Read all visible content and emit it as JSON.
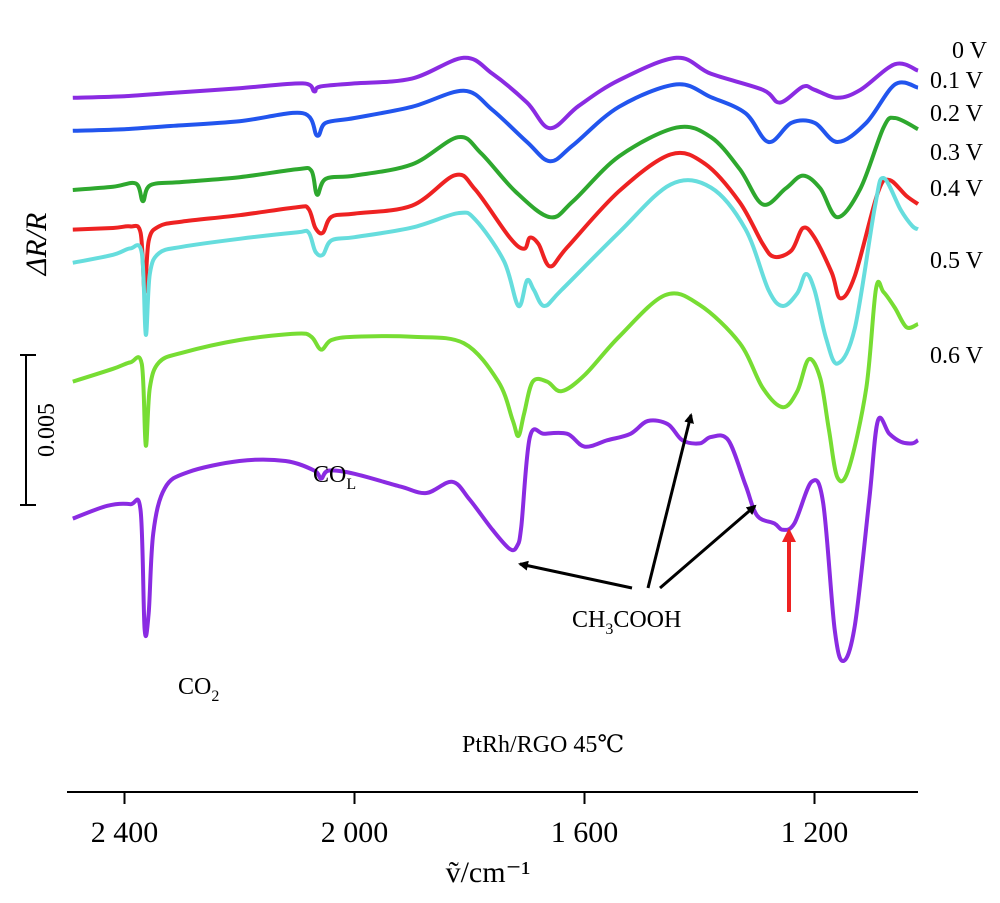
{
  "chart_data": {
    "type": "line",
    "title": "",
    "xlabel": "ṽ/cm⁻¹",
    "ylabel": "ΔR/R",
    "xlim": [
      2500,
      1020
    ],
    "x_reversed": true,
    "ticks": [
      {
        "value": 2400,
        "label": "2 400"
      },
      {
        "value": 2000,
        "label": "2 000"
      },
      {
        "value": 1600,
        "label": "1 600"
      },
      {
        "value": 1200,
        "label": "1 200"
      }
    ],
    "scale_bar": {
      "value": 0.005,
      "label": "0.005"
    },
    "sample_label": "PtRh/RGO 45℃",
    "annotations": {
      "co2": {
        "main": "CO",
        "sub": "2"
      },
      "col": {
        "main": "CO",
        "sub": "L"
      },
      "acetic": {
        "main1": "CH",
        "sub": "3",
        "main2": "COOH"
      }
    },
    "series": [
      {
        "name": "0 V",
        "color": "#8a2be2",
        "points": [
          [
            2490,
            -0.0003
          ],
          [
            2400,
            -0.0002
          ],
          [
            2320,
            0
          ],
          [
            2200,
            0.0003
          ],
          [
            2090,
            0.0006
          ],
          [
            2070,
            0.0001
          ],
          [
            2060,
            0.0004
          ],
          [
            2000,
            0.0006
          ],
          [
            1900,
            0.0009
          ],
          [
            1810,
            0.0022
          ],
          [
            1760,
            0.0012
          ],
          [
            1700,
            -0.0006
          ],
          [
            1660,
            -0.0022
          ],
          [
            1610,
            -0.0008
          ],
          [
            1540,
            0.0008
          ],
          [
            1440,
            0.0022
          ],
          [
            1380,
            0.0012
          ],
          [
            1290,
            0.0002
          ],
          [
            1260,
            -0.0006
          ],
          [
            1220,
            0.0004
          ],
          [
            1200,
            0.0002
          ],
          [
            1160,
            -0.0003
          ],
          [
            1120,
            0.0002
          ],
          [
            1060,
            0.0018
          ],
          [
            1020,
            0.0014
          ]
        ]
      },
      {
        "name": "0.1 V",
        "color": "#2255ee",
        "points": [
          [
            2490,
            -0.0003
          ],
          [
            2400,
            -0.0002
          ],
          [
            2320,
            0
          ],
          [
            2200,
            0.0003
          ],
          [
            2090,
            0.0008
          ],
          [
            2065,
            -0.0006
          ],
          [
            2050,
            0.0002
          ],
          [
            2000,
            0.0005
          ],
          [
            1900,
            0.0012
          ],
          [
            1810,
            0.0022
          ],
          [
            1760,
            0.001
          ],
          [
            1700,
            -0.001
          ],
          [
            1660,
            -0.0022
          ],
          [
            1620,
            -0.0012
          ],
          [
            1540,
            0.0012
          ],
          [
            1440,
            0.0026
          ],
          [
            1380,
            0.0018
          ],
          [
            1320,
            0.0008
          ],
          [
            1280,
            -0.001
          ],
          [
            1240,
            0.0002
          ],
          [
            1200,
            0.0002
          ],
          [
            1160,
            -0.001
          ],
          [
            1110,
            0.0002
          ],
          [
            1060,
            0.0026
          ],
          [
            1020,
            0.0024
          ]
        ]
      },
      {
        "name": "0.2 V",
        "color": "#2ea82e",
        "points": [
          [
            2490,
            -0.0005
          ],
          [
            2420,
            -0.0003
          ],
          [
            2380,
            -0.0001
          ],
          [
            2368,
            -0.0012
          ],
          [
            2355,
            -0.0002
          ],
          [
            2300,
            0
          ],
          [
            2200,
            0.0003
          ],
          [
            2100,
            0.0008
          ],
          [
            2075,
            0.0007
          ],
          [
            2065,
            -0.0008
          ],
          [
            2050,
            0.0002
          ],
          [
            2000,
            0.0004
          ],
          [
            1900,
            0.0011
          ],
          [
            1820,
            0.0028
          ],
          [
            1780,
            0.0018
          ],
          [
            1720,
            -0.0006
          ],
          [
            1660,
            -0.0022
          ],
          [
            1620,
            -0.0012
          ],
          [
            1540,
            0.0016
          ],
          [
            1440,
            0.0034
          ],
          [
            1380,
            0.0028
          ],
          [
            1330,
            0.0008
          ],
          [
            1290,
            -0.0014
          ],
          [
            1250,
            -0.0004
          ],
          [
            1220,
            0.0004
          ],
          [
            1190,
            -0.0004
          ],
          [
            1160,
            -0.0022
          ],
          [
            1120,
            -0.0004
          ],
          [
            1080,
            0.0034
          ],
          [
            1060,
            0.004
          ],
          [
            1020,
            0.0033
          ]
        ]
      },
      {
        "name": "0.3 V",
        "color": "#ee2222",
        "points": [
          [
            2490,
            -0.0001
          ],
          [
            2420,
            0
          ],
          [
            2390,
            0.0001
          ],
          [
            2372,
            -0.0003
          ],
          [
            2365,
            -0.004
          ],
          [
            2358,
            -0.0008
          ],
          [
            2340,
            0.0001
          ],
          [
            2300,
            0.0004
          ],
          [
            2200,
            0.0008
          ],
          [
            2100,
            0.0013
          ],
          [
            2080,
            0.0012
          ],
          [
            2068,
            0
          ],
          [
            2055,
            -0.0003
          ],
          [
            2040,
            0.0007
          ],
          [
            2000,
            0.0009
          ],
          [
            1900,
            0.0014
          ],
          [
            1825,
            0.0033
          ],
          [
            1790,
            0.0024
          ],
          [
            1730,
            -0.0006
          ],
          [
            1705,
            -0.0013
          ],
          [
            1695,
            -0.0006
          ],
          [
            1680,
            -0.001
          ],
          [
            1660,
            -0.0024
          ],
          [
            1630,
            -0.0012
          ],
          [
            1540,
            0.0023
          ],
          [
            1450,
            0.0046
          ],
          [
            1390,
            0.004
          ],
          [
            1330,
            0.0016
          ],
          [
            1290,
            -0.001
          ],
          [
            1270,
            -0.0018
          ],
          [
            1240,
            -0.0014
          ],
          [
            1220,
            0
          ],
          [
            1200,
            -0.0006
          ],
          [
            1170,
            -0.0028
          ],
          [
            1155,
            -0.0044
          ],
          [
            1130,
            -0.003
          ],
          [
            1090,
            0.0022
          ],
          [
            1070,
            0.003
          ],
          [
            1040,
            0.002
          ],
          [
            1020,
            0.0015
          ]
        ]
      },
      {
        "name": "0.4 V",
        "color": "#66dddd",
        "points": [
          [
            2490,
            -0.0003
          ],
          [
            2420,
            0.0002
          ],
          [
            2390,
            0.0006
          ],
          [
            2370,
            0.0003
          ],
          [
            2363,
            -0.0048
          ],
          [
            2356,
            -0.001
          ],
          [
            2340,
            0.0003
          ],
          [
            2300,
            0.0007
          ],
          [
            2200,
            0.0012
          ],
          [
            2100,
            0.0016
          ],
          [
            2080,
            0.0016
          ],
          [
            2068,
            0.0004
          ],
          [
            2055,
            0.0002
          ],
          [
            2040,
            0.0011
          ],
          [
            2000,
            0.0013
          ],
          [
            1900,
            0.0019
          ],
          [
            1820,
            0.0028
          ],
          [
            1790,
            0.0024
          ],
          [
            1740,
            -0.0002
          ],
          [
            1715,
            -0.003
          ],
          [
            1700,
            -0.0014
          ],
          [
            1688,
            -0.002
          ],
          [
            1670,
            -0.003
          ],
          [
            1640,
            -0.002
          ],
          [
            1540,
            0.0016
          ],
          [
            1450,
            0.0046
          ],
          [
            1380,
            0.0044
          ],
          [
            1320,
            0.0018
          ],
          [
            1280,
            -0.002
          ],
          [
            1255,
            -0.003
          ],
          [
            1230,
            -0.0022
          ],
          [
            1215,
            -0.001
          ],
          [
            1200,
            -0.002
          ],
          [
            1180,
            -0.005
          ],
          [
            1160,
            -0.0066
          ],
          [
            1130,
            -0.0044
          ],
          [
            1095,
            0.0032
          ],
          [
            1080,
            0.005
          ],
          [
            1050,
            0.003
          ],
          [
            1030,
            0.002
          ],
          [
            1020,
            0.0018
          ]
        ]
      },
      {
        "name": "0.5 V",
        "color": "#77dd33",
        "points": [
          [
            2490,
            -0.0006
          ],
          [
            2420,
            0.0002
          ],
          [
            2390,
            0.0006
          ],
          [
            2370,
            0.0005
          ],
          [
            2363,
            -0.0046
          ],
          [
            2356,
            -0.001
          ],
          [
            2340,
            0.0006
          ],
          [
            2300,
            0.0012
          ],
          [
            2200,
            0.002
          ],
          [
            2100,
            0.0024
          ],
          [
            2075,
            0.0022
          ],
          [
            2058,
            0.0014
          ],
          [
            2040,
            0.002
          ],
          [
            2000,
            0.0022
          ],
          [
            1900,
            0.0022
          ],
          [
            1810,
            0.0018
          ],
          [
            1750,
            -0.0006
          ],
          [
            1725,
            -0.003
          ],
          [
            1715,
            -0.004
          ],
          [
            1705,
            -0.0026
          ],
          [
            1690,
            -0.0006
          ],
          [
            1665,
            -0.0006
          ],
          [
            1640,
            -0.0012
          ],
          [
            1600,
            -0.0002
          ],
          [
            1540,
            0.0022
          ],
          [
            1460,
            0.0048
          ],
          [
            1400,
            0.0042
          ],
          [
            1330,
            0.0018
          ],
          [
            1290,
            -0.001
          ],
          [
            1255,
            -0.0022
          ],
          [
            1230,
            -0.0012
          ],
          [
            1210,
            0.0008
          ],
          [
            1190,
            -0.0004
          ],
          [
            1175,
            -0.0036
          ],
          [
            1160,
            -0.0066
          ],
          [
            1140,
            -0.006
          ],
          [
            1110,
            -0.001
          ],
          [
            1093,
            0.0052
          ],
          [
            1080,
            0.005
          ],
          [
            1060,
            0.004
          ],
          [
            1040,
            0.0028
          ],
          [
            1020,
            0.003
          ]
        ]
      },
      {
        "name": "0.6 V",
        "color": "#8a2be2",
        "points": [
          [
            2490,
            -0.0001
          ],
          [
            2430,
            0.0007
          ],
          [
            2390,
            0.0008
          ],
          [
            2372,
            0.0004
          ],
          [
            2365,
            -0.007
          ],
          [
            2358,
            -0.006
          ],
          [
            2350,
            -0.001
          ],
          [
            2330,
            0.0018
          ],
          [
            2290,
            0.0028
          ],
          [
            2200,
            0.0035
          ],
          [
            2120,
            0.0035
          ],
          [
            2070,
            0.0029
          ],
          [
            2058,
            0.0024
          ],
          [
            2045,
            0.0029
          ],
          [
            2000,
            0.0027
          ],
          [
            1920,
            0.0019
          ],
          [
            1875,
            0.0015
          ],
          [
            1830,
            0.0022
          ],
          [
            1800,
            0.0011
          ],
          [
            1760,
            -0.0008
          ],
          [
            1730,
            -0.002
          ],
          [
            1717,
            -0.0018
          ],
          [
            1710,
            -0.0006
          ],
          [
            1695,
            0.005
          ],
          [
            1670,
            0.0052
          ],
          [
            1630,
            0.0052
          ],
          [
            1600,
            0.0044
          ],
          [
            1560,
            0.0048
          ],
          [
            1520,
            0.0052
          ],
          [
            1490,
            0.006
          ],
          [
            1455,
            0.0058
          ],
          [
            1430,
            0.0048
          ],
          [
            1400,
            0.0046
          ],
          [
            1380,
            0.005
          ],
          [
            1350,
            0.0048
          ],
          [
            1320,
            0.002
          ],
          [
            1300,
            0.0001
          ],
          [
            1270,
            -0.0004
          ],
          [
            1255,
            -0.0008
          ],
          [
            1235,
            -0.0004
          ],
          [
            1205,
            0.0022
          ],
          [
            1185,
            0.0009
          ],
          [
            1165,
            -0.007
          ],
          [
            1150,
            -0.009
          ],
          [
            1130,
            -0.0068
          ],
          [
            1105,
            0.001
          ],
          [
            1090,
            0.006
          ],
          [
            1070,
            0.0052
          ],
          [
            1050,
            0.0047
          ],
          [
            1030,
            0.0046
          ],
          [
            1020,
            0.0048
          ]
        ]
      }
    ]
  }
}
